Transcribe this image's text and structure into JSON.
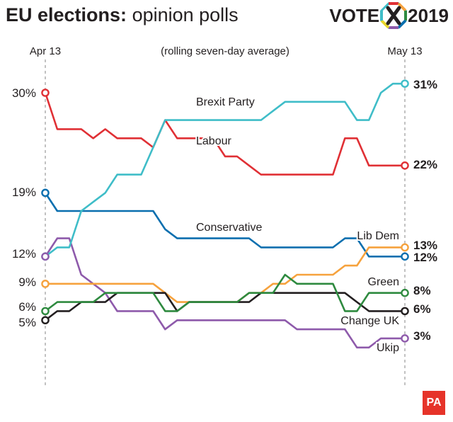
{
  "header": {
    "title_bold": "EU elections:",
    "title_rest": "opinion polls",
    "logo_vote": "VOTE",
    "logo_year": "2019",
    "badge": "PA"
  },
  "chart_data": {
    "type": "line",
    "subtitle": "(rolling seven-day average)",
    "start_label": "Apr 13",
    "end_label": "May 13",
    "ylim": [
      2,
      32
    ],
    "x": [
      0,
      1,
      2,
      3,
      4,
      5,
      6,
      7,
      8,
      9,
      10,
      11,
      12,
      13,
      14,
      15,
      16,
      17,
      18,
      19,
      20,
      21,
      22,
      23,
      24,
      25,
      26,
      27,
      28,
      29,
      30
    ],
    "series": [
      {
        "name": "Brexit Party",
        "color": "#3fbdc8",
        "start": "12%",
        "end": "31%",
        "values": [
          12,
          13,
          13,
          17,
          18,
          19,
          21,
          21,
          21,
          24,
          27,
          27,
          27,
          27,
          27,
          27,
          27,
          27,
          27,
          28,
          29,
          29,
          29,
          29,
          29,
          29,
          27,
          27,
          30,
          31,
          31
        ]
      },
      {
        "name": "Labour",
        "color": "#e03035",
        "start": "30%",
        "end": "22%",
        "values": [
          30,
          26,
          26,
          26,
          25,
          26,
          25,
          25,
          25,
          24,
          27,
          25,
          25,
          25,
          25,
          23,
          23,
          22,
          21,
          21,
          21,
          21,
          21,
          21,
          21,
          25,
          25,
          22,
          22,
          22,
          22
        ]
      },
      {
        "name": "Conservative",
        "color": "#0a6faf",
        "start": "19%",
        "end": "12%",
        "values": [
          19,
          17,
          17,
          17,
          17,
          17,
          17,
          17,
          17,
          17,
          15,
          14,
          14,
          14,
          14,
          14,
          14,
          14,
          13,
          13,
          13,
          13,
          13,
          13,
          13,
          14,
          14,
          12,
          12,
          12,
          12
        ]
      },
      {
        "name": "Lib Dem",
        "color": "#f6a23d",
        "start": "9%",
        "end": "13%",
        "values": [
          9,
          9,
          9,
          9,
          9,
          9,
          9,
          9,
          9,
          9,
          8,
          7,
          7,
          7,
          7,
          7,
          7,
          8,
          8,
          9,
          9,
          10,
          10,
          10,
          10,
          11,
          11,
          13,
          13,
          13,
          13
        ]
      },
      {
        "name": "Green",
        "color": "#2e8a3f",
        "start": "6%",
        "end": "8%",
        "values": [
          6,
          7,
          7,
          7,
          7,
          8,
          8,
          8,
          8,
          8,
          6,
          6,
          7,
          7,
          7,
          7,
          7,
          8,
          8,
          8,
          10,
          9,
          9,
          9,
          9,
          6,
          6,
          8,
          8,
          8,
          8
        ]
      },
      {
        "name": "Change UK",
        "color": "#231f20",
        "start": "5%",
        "end": "6%",
        "values": [
          5,
          6,
          6,
          7,
          7,
          7,
          8,
          8,
          8,
          8,
          8,
          6,
          7,
          7,
          7,
          7,
          7,
          7,
          8,
          8,
          8,
          8,
          8,
          8,
          8,
          8,
          7,
          6,
          6,
          6,
          6
        ]
      },
      {
        "name": "Ukip",
        "color": "#8e5aab",
        "start": "12%",
        "end": "3%",
        "values": [
          12,
          14,
          14,
          10,
          9,
          8,
          6,
          6,
          6,
          6,
          4,
          5,
          5,
          5,
          5,
          5,
          5,
          5,
          5,
          5,
          5,
          4,
          4,
          4,
          4,
          4,
          2,
          2,
          3,
          3,
          3
        ]
      }
    ]
  }
}
